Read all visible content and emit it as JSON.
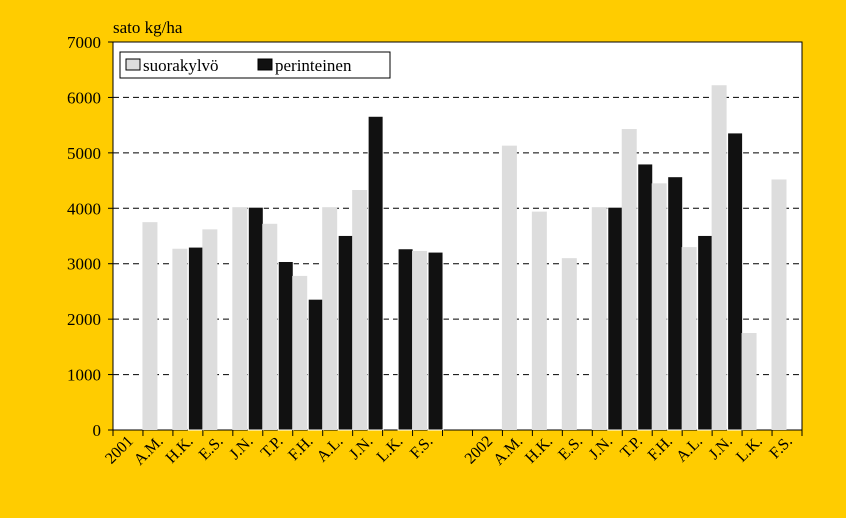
{
  "colors": {
    "background": "#FFCC00",
    "plot_area": "#FFFFFF",
    "suorakylvo": "#DDDDDD",
    "perinteinen": "#111111",
    "grid": "#000000"
  },
  "chart_data": {
    "type": "bar",
    "ylabel": "sato kg/ha",
    "ylim": [
      0,
      7000
    ],
    "yticks": [
      0,
      1000,
      2000,
      3000,
      4000,
      5000,
      6000,
      7000
    ],
    "grid": "horizontal dashed",
    "legend_position": "top-left",
    "categories": [
      "2001",
      "A.M.",
      "H.K.",
      "E.S.",
      "J.N.",
      "T.P.",
      "F.H.",
      "A.L.",
      "J.N.",
      "L.K.",
      "F.S.",
      "",
      "2002",
      "A.M.",
      "H.K.",
      "E.S.",
      "J.N.",
      "T.P.",
      "F.H.",
      "A.L.",
      "J.N.",
      "L.K.",
      "F.S."
    ],
    "series": [
      {
        "name": "suorakylvö",
        "values": [
          null,
          3750,
          3270,
          3620,
          4020,
          3720,
          2780,
          4020,
          4330,
          null,
          3230,
          null,
          null,
          5130,
          3940,
          3100,
          4020,
          5430,
          4450,
          3300,
          6220,
          1750,
          4520
        ]
      },
      {
        "name": "perinteinen",
        "values": [
          null,
          null,
          3300,
          null,
          4020,
          3040,
          2360,
          3510,
          5660,
          3270,
          3210,
          null,
          null,
          null,
          null,
          null,
          4020,
          4800,
          4570,
          3510,
          5360,
          null,
          null
        ]
      }
    ]
  }
}
